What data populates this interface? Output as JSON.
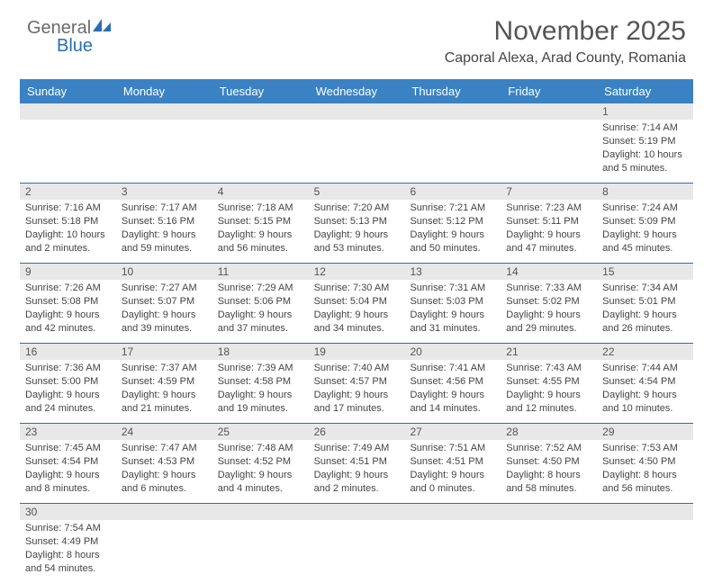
{
  "logo": {
    "general": "General",
    "blue": "Blue"
  },
  "title": "November 2025",
  "location": "Caporal Alexa, Arad County, Romania",
  "colors": {
    "header_bg": "#3a82c4",
    "header_text": "#ffffff",
    "rule": "#2a6fb0",
    "daynum_bg": "#e8e8e8",
    "text": "#444444"
  },
  "day_headers": [
    "Sunday",
    "Monday",
    "Tuesday",
    "Wednesday",
    "Thursday",
    "Friday",
    "Saturday"
  ],
  "weeks": [
    [
      null,
      null,
      null,
      null,
      null,
      null,
      {
        "n": "1",
        "sunrise": "7:14 AM",
        "sunset": "5:19 PM",
        "daylight": "10 hours and 5 minutes."
      }
    ],
    [
      {
        "n": "2",
        "sunrise": "7:16 AM",
        "sunset": "5:18 PM",
        "daylight": "10 hours and 2 minutes."
      },
      {
        "n": "3",
        "sunrise": "7:17 AM",
        "sunset": "5:16 PM",
        "daylight": "9 hours and 59 minutes."
      },
      {
        "n": "4",
        "sunrise": "7:18 AM",
        "sunset": "5:15 PM",
        "daylight": "9 hours and 56 minutes."
      },
      {
        "n": "5",
        "sunrise": "7:20 AM",
        "sunset": "5:13 PM",
        "daylight": "9 hours and 53 minutes."
      },
      {
        "n": "6",
        "sunrise": "7:21 AM",
        "sunset": "5:12 PM",
        "daylight": "9 hours and 50 minutes."
      },
      {
        "n": "7",
        "sunrise": "7:23 AM",
        "sunset": "5:11 PM",
        "daylight": "9 hours and 47 minutes."
      },
      {
        "n": "8",
        "sunrise": "7:24 AM",
        "sunset": "5:09 PM",
        "daylight": "9 hours and 45 minutes."
      }
    ],
    [
      {
        "n": "9",
        "sunrise": "7:26 AM",
        "sunset": "5:08 PM",
        "daylight": "9 hours and 42 minutes."
      },
      {
        "n": "10",
        "sunrise": "7:27 AM",
        "sunset": "5:07 PM",
        "daylight": "9 hours and 39 minutes."
      },
      {
        "n": "11",
        "sunrise": "7:29 AM",
        "sunset": "5:06 PM",
        "daylight": "9 hours and 37 minutes."
      },
      {
        "n": "12",
        "sunrise": "7:30 AM",
        "sunset": "5:04 PM",
        "daylight": "9 hours and 34 minutes."
      },
      {
        "n": "13",
        "sunrise": "7:31 AM",
        "sunset": "5:03 PM",
        "daylight": "9 hours and 31 minutes."
      },
      {
        "n": "14",
        "sunrise": "7:33 AM",
        "sunset": "5:02 PM",
        "daylight": "9 hours and 29 minutes."
      },
      {
        "n": "15",
        "sunrise": "7:34 AM",
        "sunset": "5:01 PM",
        "daylight": "9 hours and 26 minutes."
      }
    ],
    [
      {
        "n": "16",
        "sunrise": "7:36 AM",
        "sunset": "5:00 PM",
        "daylight": "9 hours and 24 minutes."
      },
      {
        "n": "17",
        "sunrise": "7:37 AM",
        "sunset": "4:59 PM",
        "daylight": "9 hours and 21 minutes."
      },
      {
        "n": "18",
        "sunrise": "7:39 AM",
        "sunset": "4:58 PM",
        "daylight": "9 hours and 19 minutes."
      },
      {
        "n": "19",
        "sunrise": "7:40 AM",
        "sunset": "4:57 PM",
        "daylight": "9 hours and 17 minutes."
      },
      {
        "n": "20",
        "sunrise": "7:41 AM",
        "sunset": "4:56 PM",
        "daylight": "9 hours and 14 minutes."
      },
      {
        "n": "21",
        "sunrise": "7:43 AM",
        "sunset": "4:55 PM",
        "daylight": "9 hours and 12 minutes."
      },
      {
        "n": "22",
        "sunrise": "7:44 AM",
        "sunset": "4:54 PM",
        "daylight": "9 hours and 10 minutes."
      }
    ],
    [
      {
        "n": "23",
        "sunrise": "7:45 AM",
        "sunset": "4:54 PM",
        "daylight": "9 hours and 8 minutes."
      },
      {
        "n": "24",
        "sunrise": "7:47 AM",
        "sunset": "4:53 PM",
        "daylight": "9 hours and 6 minutes."
      },
      {
        "n": "25",
        "sunrise": "7:48 AM",
        "sunset": "4:52 PM",
        "daylight": "9 hours and 4 minutes."
      },
      {
        "n": "26",
        "sunrise": "7:49 AM",
        "sunset": "4:51 PM",
        "daylight": "9 hours and 2 minutes."
      },
      {
        "n": "27",
        "sunrise": "7:51 AM",
        "sunset": "4:51 PM",
        "daylight": "9 hours and 0 minutes."
      },
      {
        "n": "28",
        "sunrise": "7:52 AM",
        "sunset": "4:50 PM",
        "daylight": "8 hours and 58 minutes."
      },
      {
        "n": "29",
        "sunrise": "7:53 AM",
        "sunset": "4:50 PM",
        "daylight": "8 hours and 56 minutes."
      }
    ],
    [
      {
        "n": "30",
        "sunrise": "7:54 AM",
        "sunset": "4:49 PM",
        "daylight": "8 hours and 54 minutes."
      },
      null,
      null,
      null,
      null,
      null,
      null
    ]
  ],
  "labels": {
    "sunrise": "Sunrise: ",
    "sunset": "Sunset: ",
    "daylight": "Daylight: "
  }
}
